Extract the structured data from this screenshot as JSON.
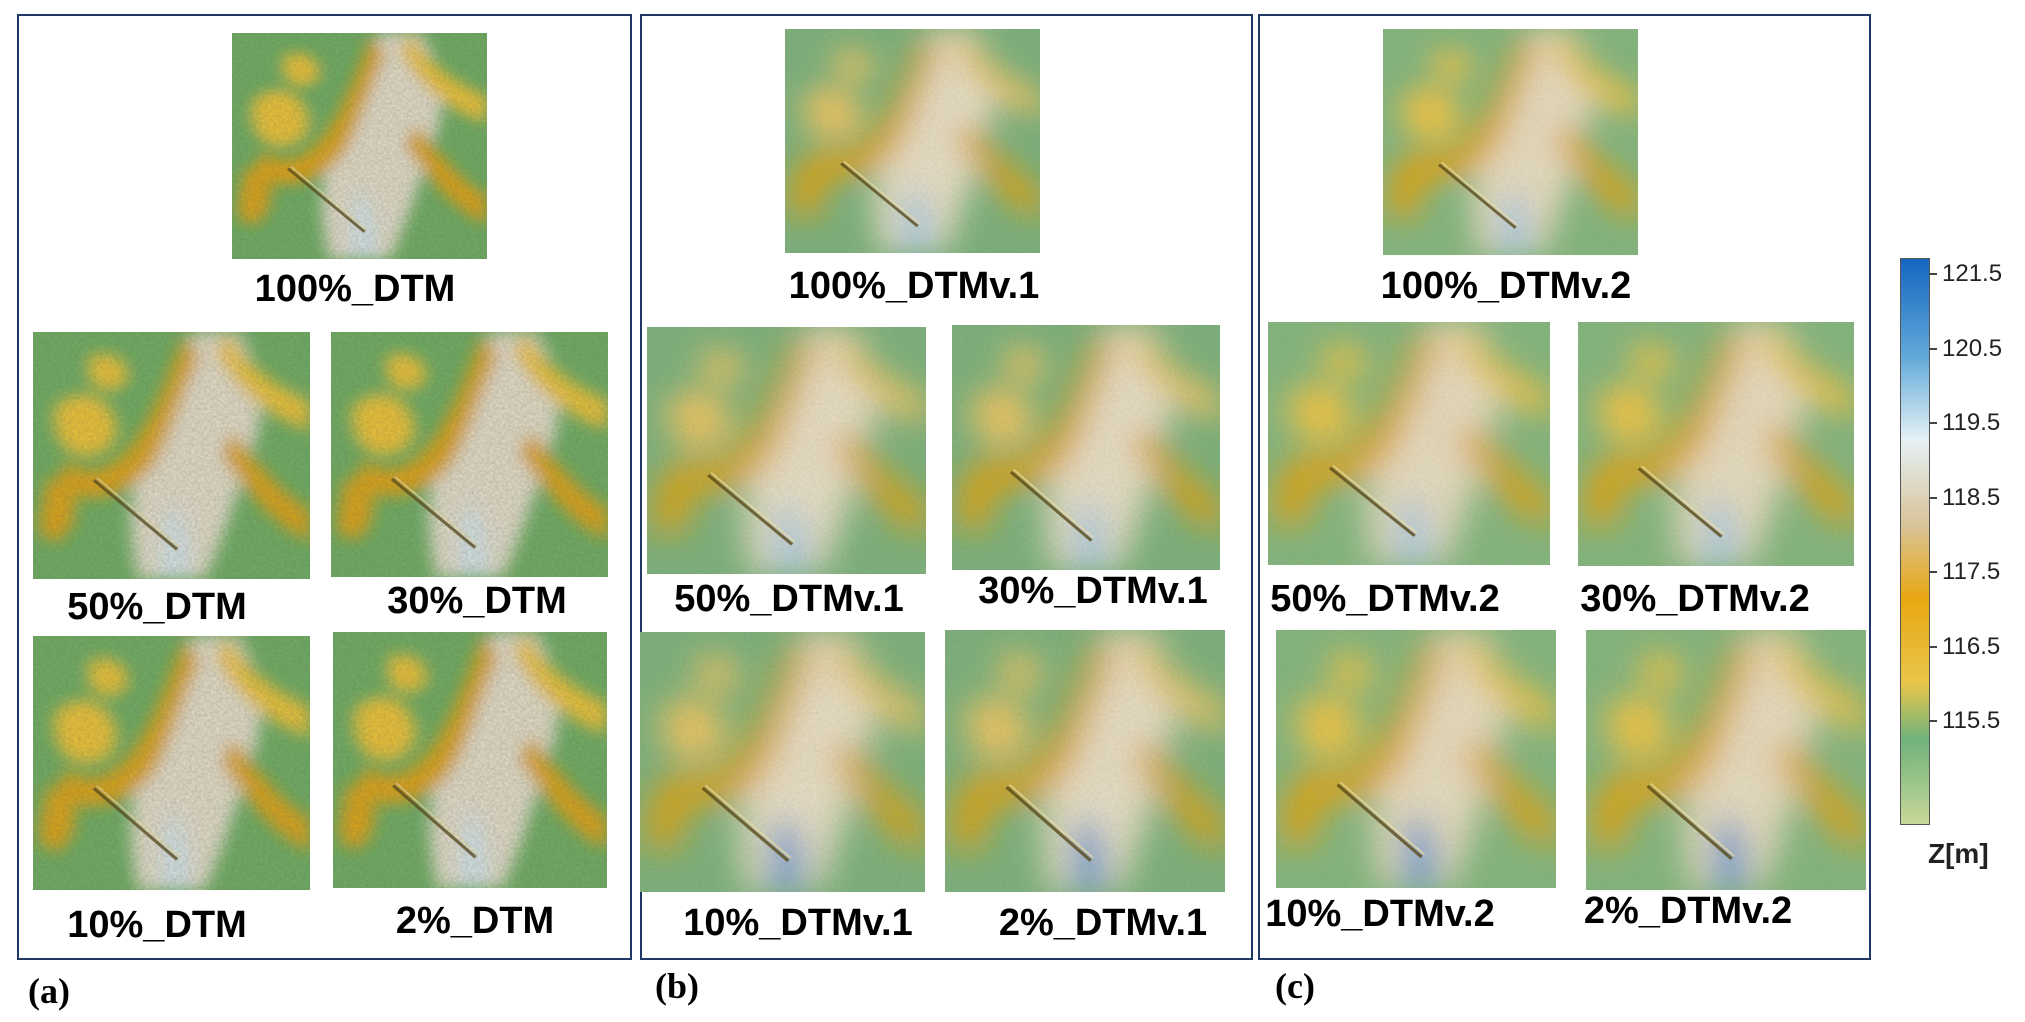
{
  "panels": {
    "a": {
      "label": "(a)",
      "tiles": [
        {
          "caption": "100%_DTM",
          "look": "dtm"
        },
        {
          "caption": "50%_DTM",
          "look": "dtm"
        },
        {
          "caption": "30%_DTM",
          "look": "dtm"
        },
        {
          "caption": "10%_DTM",
          "look": "dtm"
        },
        {
          "caption": "2%_DTM",
          "look": "dtm"
        }
      ]
    },
    "b": {
      "label": "(b)",
      "tiles": [
        {
          "caption": "100%_DTMv.1",
          "look": "v1"
        },
        {
          "caption": "50%_DTMv.1",
          "look": "v1"
        },
        {
          "caption": "30%_DTMv.1",
          "look": "v1"
        },
        {
          "caption": "10%_DTMv.1",
          "look": "v1"
        },
        {
          "caption": "2%_DTMv.1",
          "look": "v1"
        }
      ]
    },
    "c": {
      "label": "(c)",
      "tiles": [
        {
          "caption": "100%_DTMv.2",
          "look": "v2"
        },
        {
          "caption": "50%_DTMv.2",
          "look": "v2"
        },
        {
          "caption": "30%_DTMv.2",
          "look": "v2"
        },
        {
          "caption": "10%_DTMv.2",
          "look": "v2"
        },
        {
          "caption": "2%_DTMv.2",
          "look": "v2"
        }
      ]
    }
  },
  "legend": {
    "unit": "Z[m]",
    "ticks": [
      "121.5",
      "120.5",
      "119.5",
      "118.5",
      "117.5",
      "116.5",
      "115.5"
    ],
    "colors": [
      "#1565c0",
      "#5fa8d8",
      "#e6f1f5",
      "#d8c49a",
      "#e8a712",
      "#6fb27a",
      "#c8d89a"
    ]
  }
}
